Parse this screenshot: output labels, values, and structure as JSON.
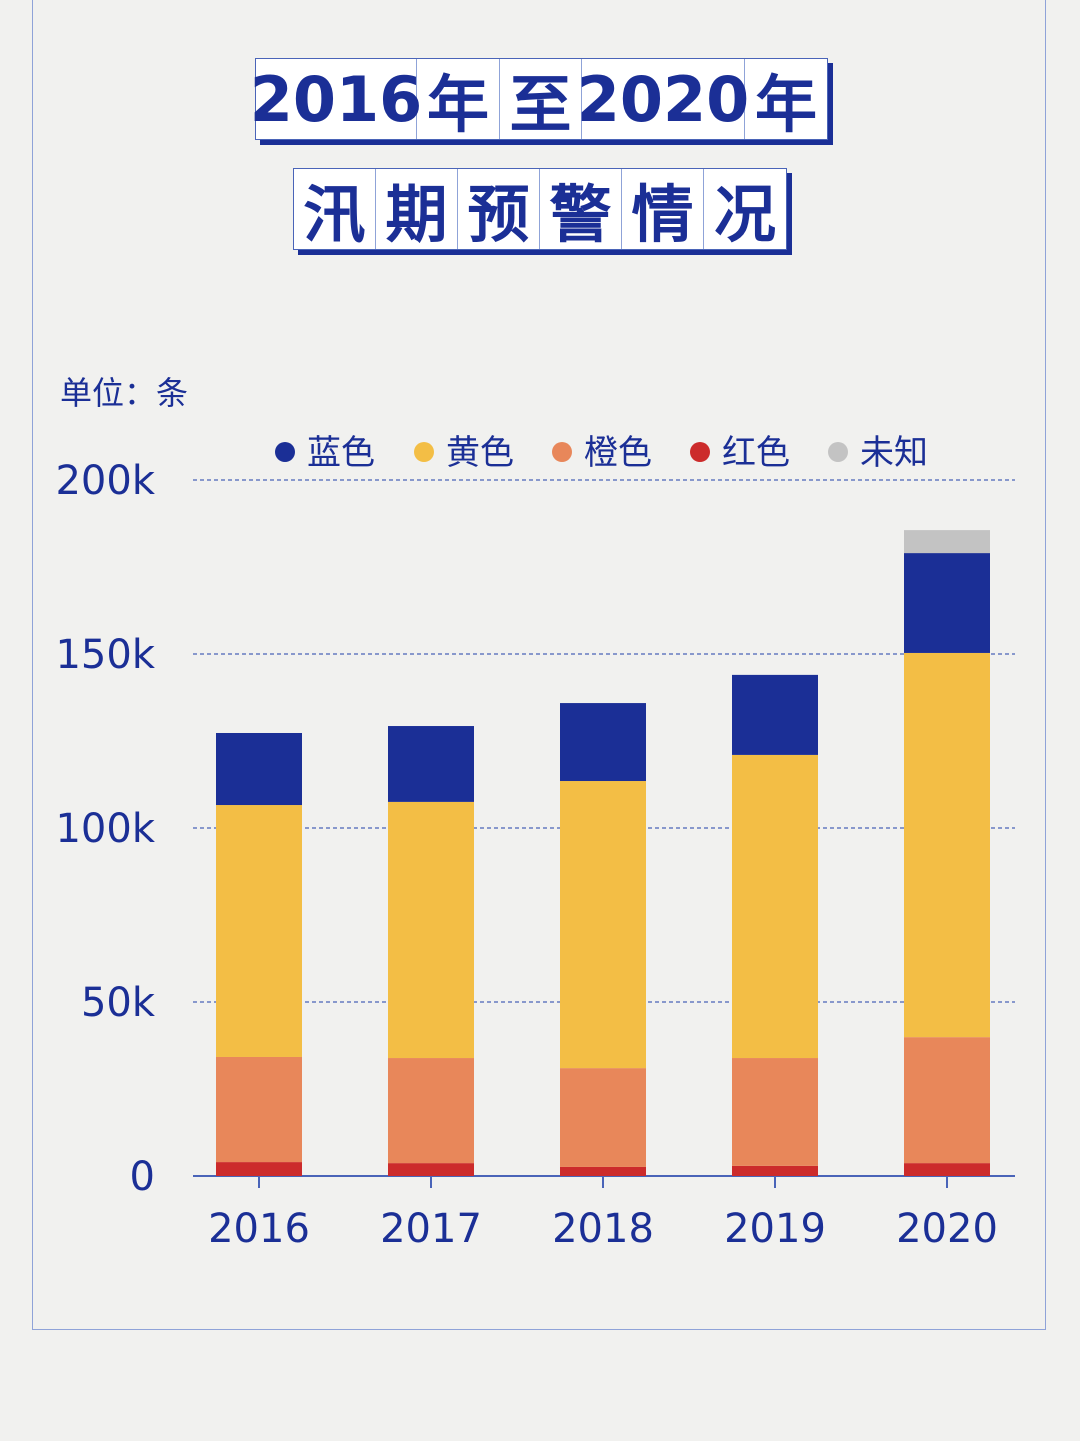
{
  "title": {
    "row1": [
      "2016",
      "年",
      "至",
      "2020",
      "年"
    ],
    "row2": [
      "汛",
      "期",
      "预",
      "警",
      "情",
      "况"
    ]
  },
  "chart_data": {
    "type": "bar",
    "stacked": true,
    "unit_label": "单位：条",
    "categories": [
      "2016",
      "2017",
      "2018",
      "2019",
      "2020"
    ],
    "series": [
      {
        "name": "红色",
        "color": "#cc2b2b",
        "values": [
          4.0,
          3.7,
          2.6,
          2.9,
          3.7
        ]
      },
      {
        "name": "橙色",
        "color": "#e8875a",
        "values": [
          30.2,
          30.2,
          28.4,
          31.0,
          36.2
        ]
      },
      {
        "name": "黄色",
        "color": "#f3be45",
        "values": [
          72.4,
          73.6,
          82.5,
          87.1,
          110.4
        ]
      },
      {
        "name": "蓝色",
        "color": "#1b2f96",
        "values": [
          20.7,
          21.8,
          22.4,
          23.0,
          28.7
        ]
      },
      {
        "name": "未知",
        "color": "#c3c3c3",
        "values": [
          0,
          0,
          0,
          0,
          6.6
        ]
      }
    ],
    "legend_order": [
      "蓝色",
      "黄色",
      "橙色",
      "红色",
      "未知"
    ],
    "value_unit": "k",
    "ylim": [
      0,
      200
    ],
    "yticks": [
      "0",
      "50k",
      "100k",
      "150k",
      "200k"
    ],
    "grid": "dashed horizontal",
    "legend_placement": "top"
  }
}
